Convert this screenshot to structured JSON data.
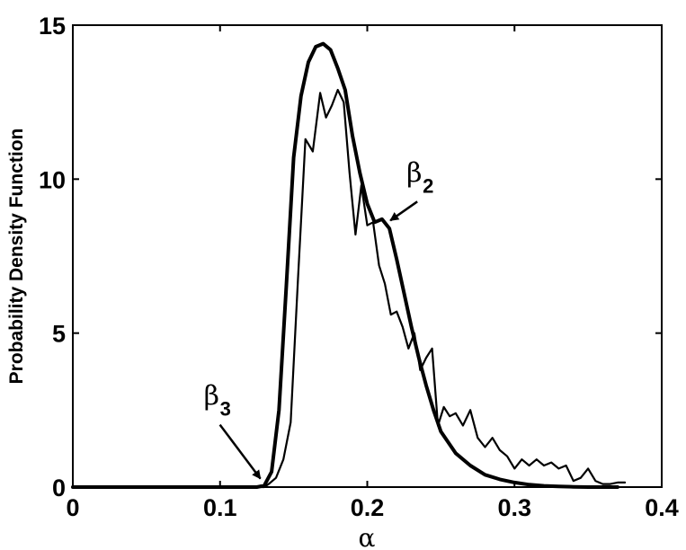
{
  "chart_data": {
    "type": "line",
    "title": "",
    "xlabel": "α",
    "ylabel": "Probability Density Function",
    "xlim": [
      0,
      0.4
    ],
    "ylim": [
      0,
      15
    ],
    "x_ticks": [
      0,
      0.1,
      0.2,
      0.3,
      0.4
    ],
    "x_tick_labels": [
      "0",
      "0.1",
      "0.2",
      "0.3",
      "0.4"
    ],
    "y_ticks": [
      0,
      5,
      10,
      15
    ],
    "y_tick_labels": [
      "0",
      "5",
      "10",
      "15"
    ],
    "grid": false,
    "legend": "none",
    "series": [
      {
        "style": "thick",
        "x": [
          0,
          0.1,
          0.125,
          0.13,
          0.135,
          0.14,
          0.145,
          0.15,
          0.155,
          0.16,
          0.165,
          0.17,
          0.175,
          0.18,
          0.185,
          0.19,
          0.195,
          0.2,
          0.205,
          0.21,
          0.215,
          0.22,
          0.225,
          0.23,
          0.235,
          0.24,
          0.245,
          0.25,
          0.26,
          0.27,
          0.28,
          0.29,
          0.3,
          0.31,
          0.32,
          0.33,
          0.34,
          0.35,
          0.36,
          0.37
        ],
        "y": [
          0,
          0,
          0,
          0.05,
          0.5,
          2.5,
          6.5,
          10.7,
          12.7,
          13.8,
          14.3,
          14.4,
          14.2,
          13.6,
          12.9,
          11.4,
          10.2,
          9.2,
          8.6,
          8.7,
          8.4,
          7.4,
          6.3,
          5.2,
          4.2,
          3.3,
          2.5,
          1.8,
          1.1,
          0.7,
          0.4,
          0.25,
          0.15,
          0.08,
          0.04,
          0.02,
          0.01,
          0,
          0,
          0
        ]
      },
      {
        "style": "thin",
        "x": [
          0,
          0.1,
          0.13,
          0.133,
          0.138,
          0.143,
          0.148,
          0.153,
          0.158,
          0.163,
          0.168,
          0.172,
          0.176,
          0.18,
          0.184,
          0.188,
          0.192,
          0.196,
          0.2,
          0.204,
          0.208,
          0.212,
          0.216,
          0.22,
          0.224,
          0.228,
          0.232,
          0.236,
          0.24,
          0.244,
          0.248,
          0.252,
          0.256,
          0.26,
          0.265,
          0.27,
          0.275,
          0.28,
          0.285,
          0.29,
          0.295,
          0.3,
          0.305,
          0.31,
          0.315,
          0.32,
          0.325,
          0.33,
          0.335,
          0.34,
          0.345,
          0.35,
          0.355,
          0.36,
          0.365,
          0.37,
          0.375
        ],
        "y": [
          0,
          0,
          0,
          0.1,
          0.3,
          0.9,
          2.1,
          6.8,
          11.3,
          10.9,
          12.8,
          12.0,
          12.4,
          12.9,
          12.5,
          10.2,
          8.2,
          9.8,
          8.5,
          8.6,
          7.2,
          6.6,
          5.6,
          5.7,
          5.2,
          4.5,
          5.0,
          3.8,
          4.2,
          4.5,
          2.0,
          2.6,
          2.3,
          2.4,
          2.0,
          2.5,
          1.6,
          1.3,
          1.6,
          1.2,
          1.0,
          0.6,
          0.9,
          0.7,
          0.9,
          0.7,
          0.8,
          0.6,
          0.7,
          0.2,
          0.3,
          0.6,
          0.2,
          0.1,
          0.1,
          0.15,
          0.15
        ]
      }
    ],
    "annotations": [
      {
        "label": "β",
        "subscript": "2",
        "points_to": [
          0.212,
          8.6
        ]
      },
      {
        "label": "β",
        "subscript": "3",
        "points_to": [
          0.128,
          0.1
        ]
      }
    ]
  }
}
